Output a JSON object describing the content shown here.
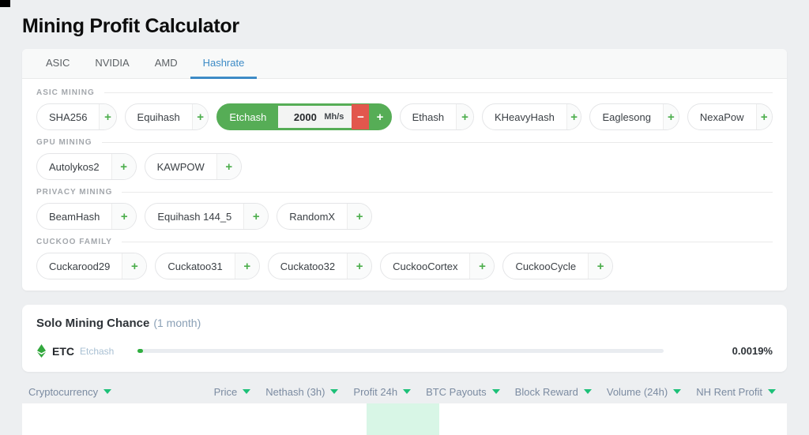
{
  "page": {
    "title": "Mining Profit Calculator"
  },
  "tabs": [
    {
      "label": "ASIC",
      "active": false
    },
    {
      "label": "NVIDIA",
      "active": false
    },
    {
      "label": "AMD",
      "active": false
    },
    {
      "label": "Hashrate",
      "active": true
    }
  ],
  "symbols": {
    "plus": "+",
    "minus": "−"
  },
  "calculator": {
    "sections": [
      {
        "label": "ASIC MINING",
        "chips": [
          {
            "label": "SHA256"
          },
          {
            "label": "Equihash"
          },
          {
            "label": "Etchash",
            "active": true,
            "value": "2000",
            "unit": "Mh/s"
          },
          {
            "label": "Ethash"
          },
          {
            "label": "KHeavyHash"
          },
          {
            "label": "Eaglesong"
          },
          {
            "label": "NexaPow"
          }
        ]
      },
      {
        "label": "GPU MINING",
        "chips": [
          {
            "label": "Autolykos2"
          },
          {
            "label": "KAWPOW"
          }
        ]
      },
      {
        "label": "PRIVACY MINING",
        "chips": [
          {
            "label": "BeamHash"
          },
          {
            "label": "Equihash 144_5"
          },
          {
            "label": "RandomX"
          }
        ]
      },
      {
        "label": "CUCKOO FAMILY",
        "chips": [
          {
            "label": "Cuckarood29"
          },
          {
            "label": "Cuckatoo31"
          },
          {
            "label": "Cuckatoo32"
          },
          {
            "label": "CuckooCortex"
          },
          {
            "label": "CuckooCycle"
          }
        ]
      }
    ]
  },
  "solo": {
    "title": "Solo Mining Chance",
    "period": "(1 month)",
    "coin": "ETC",
    "algo": "Etchash",
    "chance": "0.0019%",
    "progress_percent": 1
  },
  "table": {
    "headers": [
      "Cryptocurrency",
      "Price",
      "Nethash (3h)",
      "Profit 24h",
      "BTC Payouts",
      "Block Reward",
      "Volume (24h)",
      "NH Rent Profit"
    ]
  },
  "colors": {
    "accent_green": "#4cae4c",
    "active_chip_green": "#56ad56",
    "decrease_red": "#e2574d",
    "active_tab_blue": "#3d8bc6",
    "sort_caret_green": "#1dc078",
    "highlight_mint": "#d8f6e6",
    "coin_icon_green": "#33a83e"
  }
}
